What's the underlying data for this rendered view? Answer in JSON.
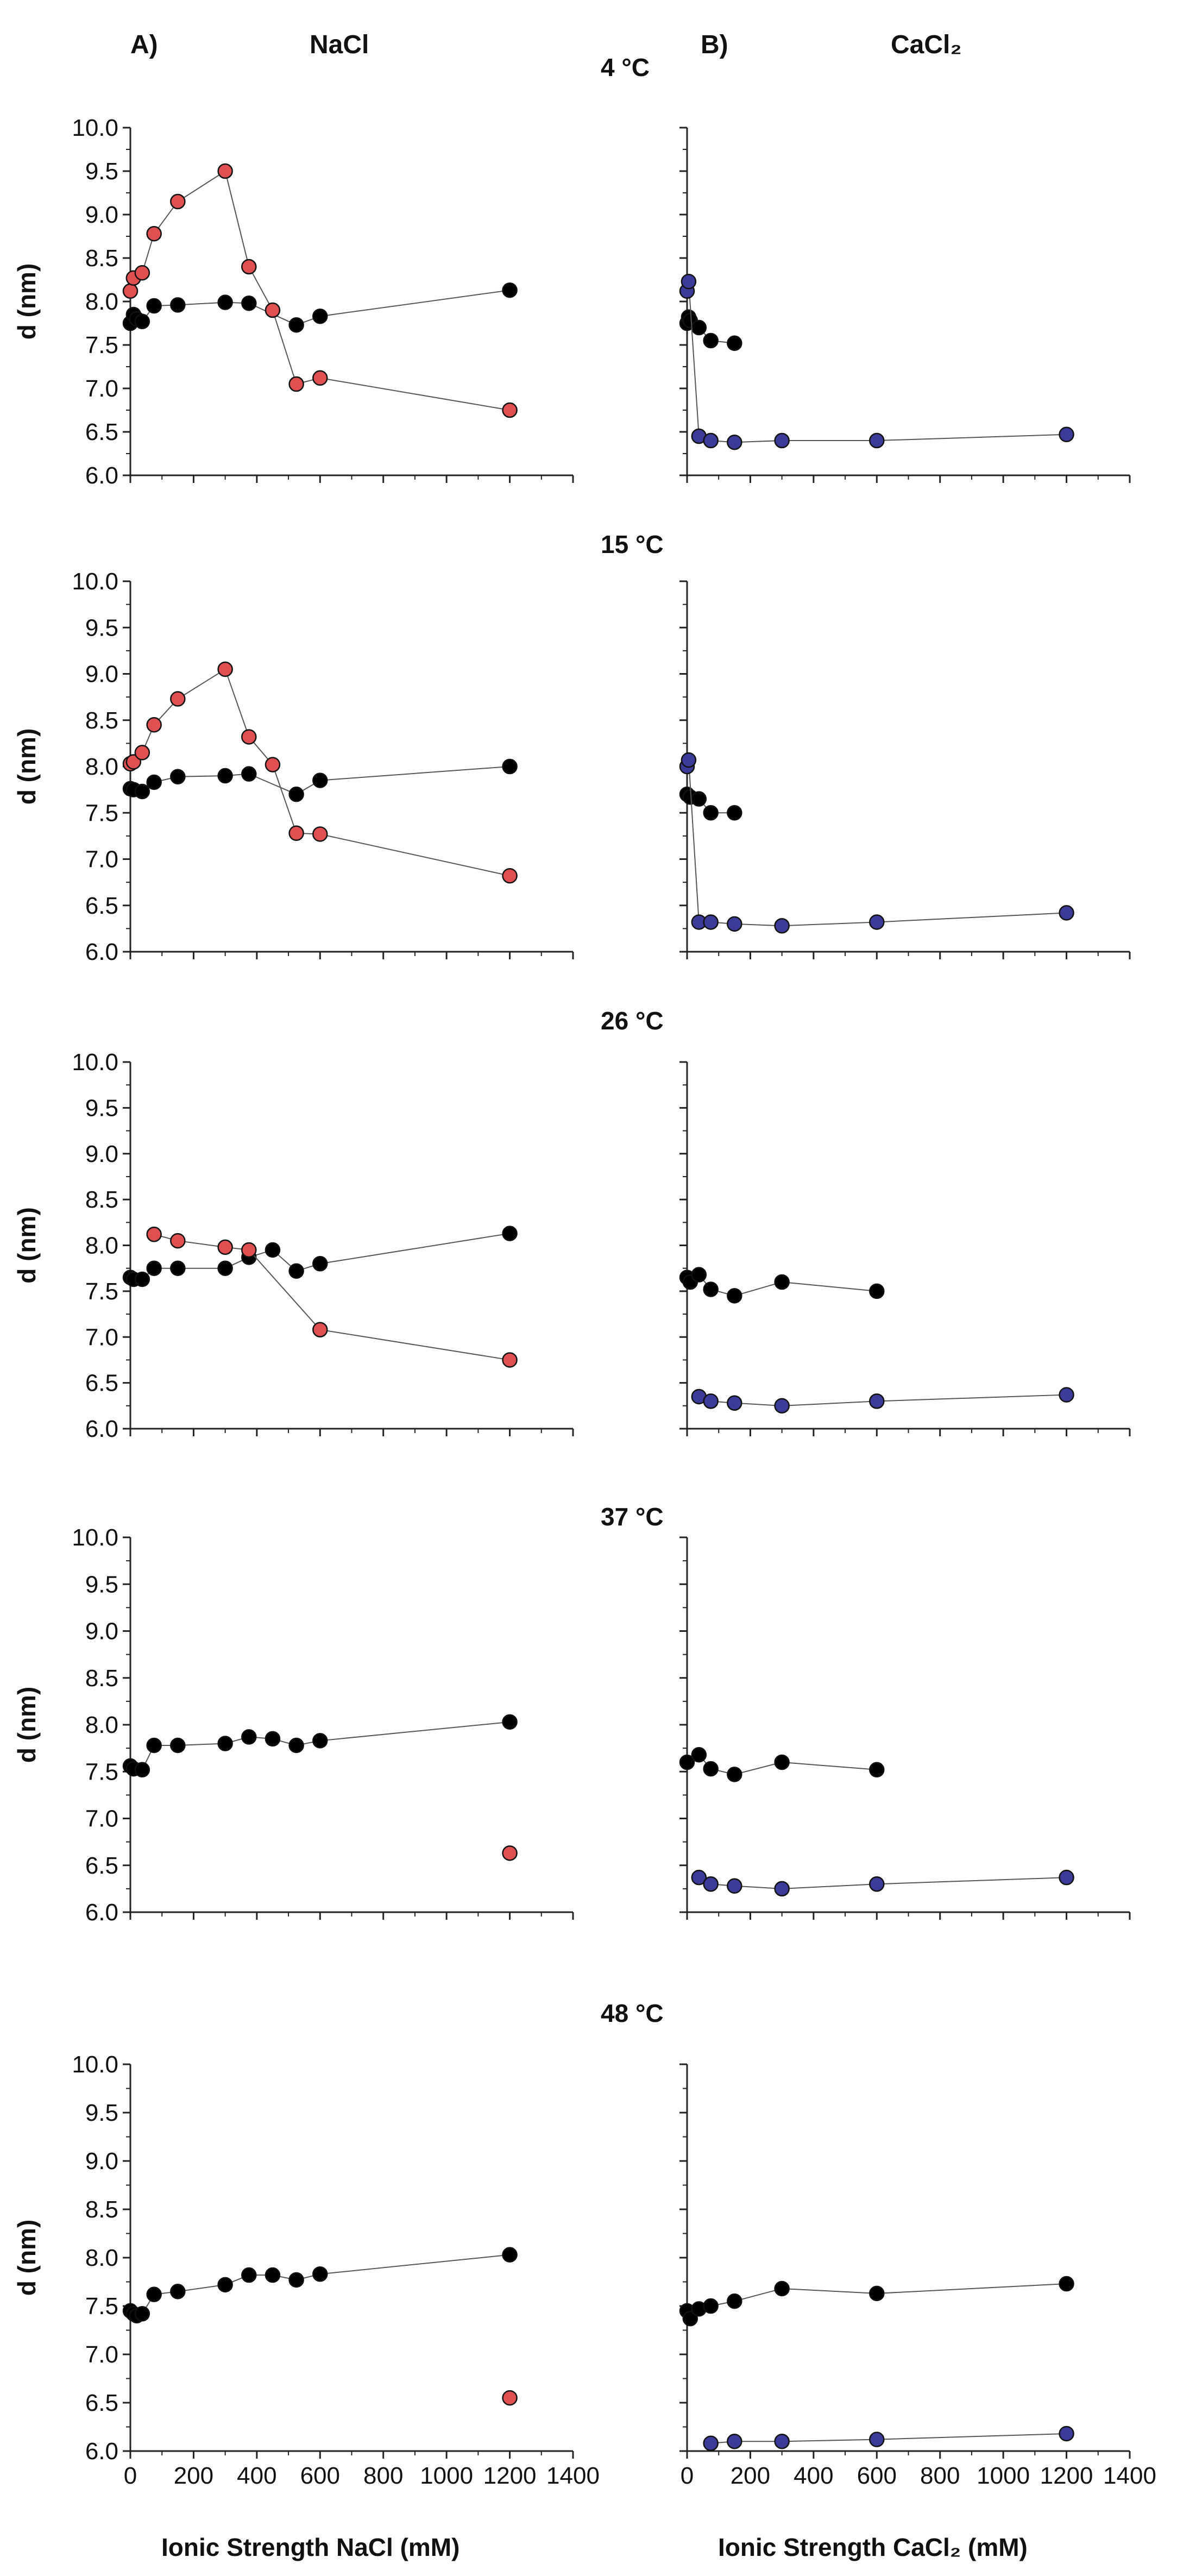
{
  "panel_labels": {
    "left": "A)",
    "right": "B)"
  },
  "salt_titles": {
    "left": "NaCl",
    "right": "CaCl₂"
  },
  "temperatures": [
    "4 °C",
    "15 °C",
    "26 °C",
    "37 °C",
    "48 °C"
  ],
  "y_axis_label": "d (nm)",
  "x_axis_labels": {
    "left": "Ionic Strength NaCl (mM)",
    "right": "Ionic Strength CaCl₂ (mM)"
  },
  "colors": {
    "black_series": "#000000",
    "nacl_series": "#e05050",
    "cacl2_series": "#3b3b9a",
    "connector": "#555555"
  },
  "chart_data": [
    {
      "type": "scatter",
      "panel": "NaCl",
      "temperature": "4 °C",
      "xlim": [
        0,
        1400
      ],
      "ylim": [
        6.0,
        10.0
      ],
      "yticks": [
        "6.0",
        "6.5",
        "7.0",
        "7.5",
        "8.0",
        "8.5",
        "9.0",
        "9.5",
        "10.0"
      ],
      "series": [
        {
          "name": "black",
          "x": [
            0,
            10,
            20,
            37.5,
            75,
            150,
            300,
            375,
            525,
            600,
            1200
          ],
          "y": [
            7.75,
            7.85,
            7.8,
            7.77,
            7.95,
            7.96,
            7.99,
            7.98,
            7.73,
            7.83,
            8.13
          ]
        },
        {
          "name": "red",
          "x": [
            0,
            10,
            37.5,
            75,
            150,
            300,
            375,
            450,
            525,
            600,
            1200
          ],
          "y": [
            8.12,
            8.27,
            8.33,
            8.78,
            9.15,
            9.5,
            8.4,
            7.9,
            7.05,
            7.12,
            6.75
          ]
        }
      ]
    },
    {
      "type": "scatter",
      "panel": "CaCl2",
      "temperature": "4 °C",
      "xlim": [
        0,
        1400
      ],
      "ylim": [
        6.0,
        10.0
      ],
      "series": [
        {
          "name": "black",
          "x": [
            0,
            5,
            10,
            37.5,
            75,
            150
          ],
          "y": [
            7.75,
            7.82,
            7.78,
            7.7,
            7.55,
            7.52
          ]
        },
        {
          "name": "blue",
          "x": [
            0,
            5,
            37.5,
            75,
            150,
            300,
            600,
            1200
          ],
          "y": [
            8.12,
            8.23,
            6.45,
            6.4,
            6.38,
            6.4,
            6.4,
            6.47
          ]
        }
      ]
    },
    {
      "type": "scatter",
      "panel": "NaCl",
      "temperature": "15 °C",
      "xlim": [
        0,
        1400
      ],
      "ylim": [
        6.0,
        10.0
      ],
      "series": [
        {
          "name": "black",
          "x": [
            0,
            10,
            37.5,
            75,
            150,
            300,
            375,
            525,
            600,
            1200
          ],
          "y": [
            7.76,
            7.75,
            7.73,
            7.83,
            7.89,
            7.9,
            7.92,
            7.7,
            7.85,
            8.0
          ]
        },
        {
          "name": "red",
          "x": [
            0,
            10,
            37.5,
            75,
            150,
            300,
            375,
            450,
            525,
            600,
            1200
          ],
          "y": [
            8.03,
            8.05,
            8.15,
            8.45,
            8.73,
            9.05,
            8.32,
            8.02,
            7.28,
            7.27,
            6.82
          ]
        }
      ]
    },
    {
      "type": "scatter",
      "panel": "CaCl2",
      "temperature": "15 °C",
      "xlim": [
        0,
        1400
      ],
      "ylim": [
        6.0,
        10.0
      ],
      "series": [
        {
          "name": "black",
          "x": [
            0,
            10,
            37.5,
            75,
            150
          ],
          "y": [
            7.7,
            7.67,
            7.65,
            7.5,
            7.5
          ]
        },
        {
          "name": "blue",
          "x": [
            0,
            5,
            37.5,
            75,
            150,
            300,
            600,
            1200
          ],
          "y": [
            8.0,
            8.07,
            6.32,
            6.32,
            6.3,
            6.28,
            6.32,
            6.42
          ]
        }
      ]
    },
    {
      "type": "scatter",
      "panel": "NaCl",
      "temperature": "26 °C",
      "xlim": [
        0,
        1400
      ],
      "ylim": [
        6.0,
        10.0
      ],
      "series": [
        {
          "name": "black",
          "x": [
            0,
            10,
            37.5,
            75,
            150,
            300,
            375,
            450,
            525,
            600,
            1200
          ],
          "y": [
            7.65,
            7.63,
            7.63,
            7.75,
            7.75,
            7.75,
            7.87,
            7.95,
            7.72,
            7.8,
            8.13
          ]
        },
        {
          "name": "red",
          "x": [
            75,
            150,
            300,
            375,
            600,
            1200
          ],
          "y": [
            8.12,
            8.05,
            7.98,
            7.95,
            7.08,
            6.75
          ]
        }
      ]
    },
    {
      "type": "scatter",
      "panel": "CaCl2",
      "temperature": "26 °C",
      "xlim": [
        0,
        1400
      ],
      "ylim": [
        6.0,
        10.0
      ],
      "series": [
        {
          "name": "black",
          "x": [
            0,
            10,
            37.5,
            75,
            150,
            300,
            600
          ],
          "y": [
            7.65,
            7.6,
            7.68,
            7.52,
            7.45,
            7.6,
            7.5
          ]
        },
        {
          "name": "blue",
          "x": [
            37.5,
            75,
            150,
            300,
            600,
            1200
          ],
          "y": [
            6.35,
            6.3,
            6.28,
            6.25,
            6.3,
            6.37
          ]
        }
      ]
    },
    {
      "type": "scatter",
      "panel": "NaCl",
      "temperature": "37 °C",
      "xlim": [
        0,
        1400
      ],
      "ylim": [
        6.0,
        10.0
      ],
      "series": [
        {
          "name": "black",
          "x": [
            0,
            10,
            37.5,
            75,
            150,
            300,
            375,
            450,
            525,
            600,
            1200
          ],
          "y": [
            7.56,
            7.53,
            7.52,
            7.78,
            7.78,
            7.8,
            7.87,
            7.85,
            7.78,
            7.83,
            8.03
          ]
        },
        {
          "name": "red",
          "x": [
            1200
          ],
          "y": [
            6.63
          ]
        }
      ]
    },
    {
      "type": "scatter",
      "panel": "CaCl2",
      "temperature": "37 °C",
      "xlim": [
        0,
        1400
      ],
      "ylim": [
        6.0,
        10.0
      ],
      "series": [
        {
          "name": "black",
          "x": [
            0,
            37.5,
            75,
            150,
            300,
            600
          ],
          "y": [
            7.6,
            7.68,
            7.53,
            7.47,
            7.6,
            7.52
          ]
        },
        {
          "name": "blue",
          "x": [
            37.5,
            75,
            150,
            300,
            600,
            1200
          ],
          "y": [
            6.37,
            6.3,
            6.28,
            6.25,
            6.3,
            6.37
          ]
        }
      ]
    },
    {
      "type": "scatter",
      "panel": "NaCl",
      "temperature": "48 °C",
      "xlim": [
        0,
        1400
      ],
      "ylim": [
        6.0,
        10.0
      ],
      "series": [
        {
          "name": "black",
          "x": [
            0,
            10,
            20,
            37.5,
            75,
            150,
            300,
            375,
            450,
            525,
            600,
            1200
          ],
          "y": [
            7.45,
            7.42,
            7.4,
            7.42,
            7.62,
            7.65,
            7.72,
            7.82,
            7.82,
            7.77,
            7.83,
            8.03
          ]
        },
        {
          "name": "red",
          "x": [
            1200
          ],
          "y": [
            6.55
          ]
        }
      ]
    },
    {
      "type": "scatter",
      "panel": "CaCl2",
      "temperature": "48 °C",
      "xlim": [
        0,
        1400
      ],
      "ylim": [
        6.0,
        10.0
      ],
      "series": [
        {
          "name": "black",
          "x": [
            0,
            10,
            37.5,
            75,
            150,
            300,
            600,
            1200
          ],
          "y": [
            7.45,
            7.37,
            7.47,
            7.5,
            7.55,
            7.68,
            7.63,
            7.73
          ]
        },
        {
          "name": "blue",
          "x": [
            75,
            150,
            300,
            600,
            1200
          ],
          "y": [
            6.08,
            6.1,
            6.1,
            6.12,
            6.18
          ]
        }
      ]
    }
  ],
  "x_ticks": [
    "0",
    "200",
    "400",
    "600",
    "800",
    "1000",
    "1200",
    "1400"
  ],
  "y_ticks": [
    "6.0",
    "6.5",
    "7.0",
    "7.5",
    "8.0",
    "8.5",
    "9.0",
    "9.5",
    "10.0"
  ]
}
